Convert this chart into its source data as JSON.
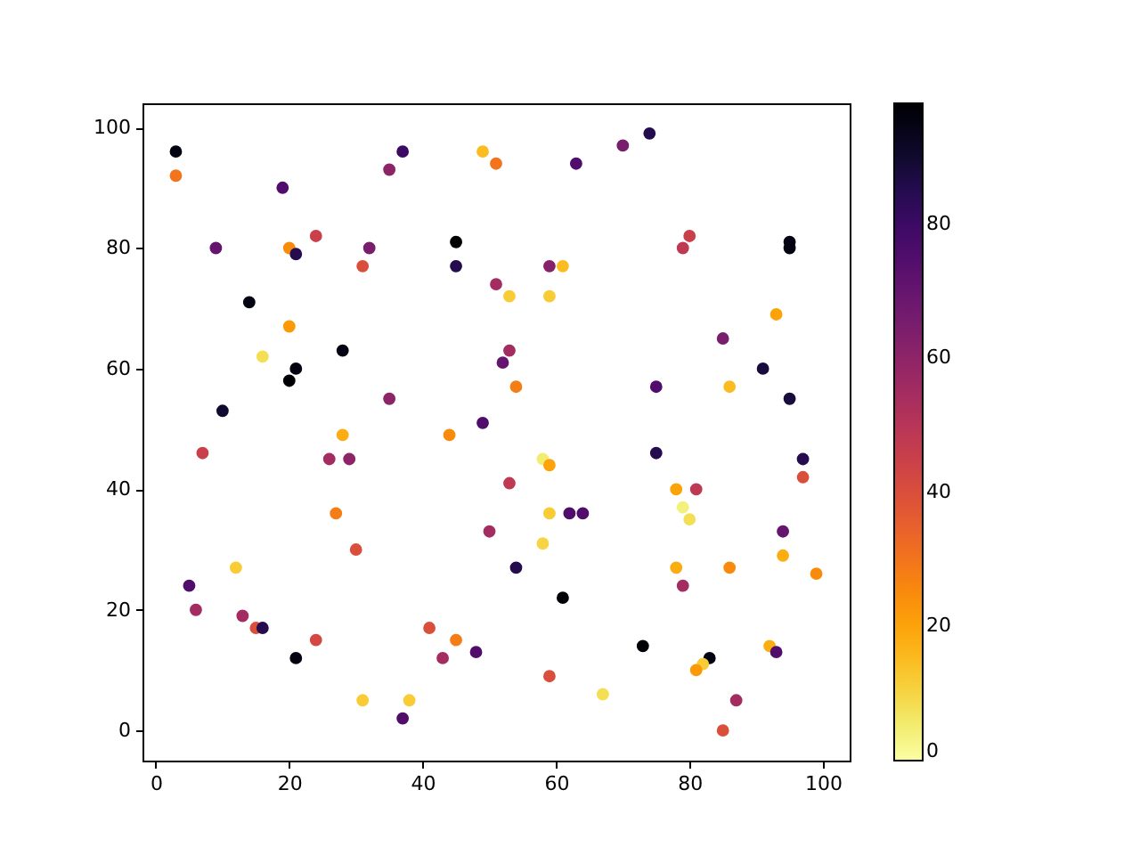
{
  "chart_data": {
    "type": "scatter",
    "marker": "circle",
    "x": [
      3,
      3,
      19,
      9,
      20,
      21,
      24,
      32,
      31,
      37,
      35,
      49,
      51,
      45,
      45,
      51,
      14,
      20,
      16,
      21,
      20,
      28,
      10,
      35,
      52,
      53,
      49,
      44,
      28,
      63,
      70,
      74,
      80,
      79,
      95,
      95,
      59,
      61,
      53,
      59,
      93,
      85,
      91,
      95,
      75,
      86,
      54,
      7,
      26,
      29,
      27,
      30,
      50,
      12,
      5,
      6,
      13,
      15,
      16,
      21,
      24,
      31,
      38,
      37,
      41,
      45,
      43,
      48,
      75,
      58,
      59,
      53,
      59,
      62,
      64,
      58,
      54,
      61,
      78,
      81,
      79,
      80,
      97,
      97,
      94,
      94,
      99,
      78,
      86,
      79,
      73,
      92,
      93,
      83,
      82,
      81,
      59,
      67,
      87,
      85
    ],
    "values": [
      96,
      92,
      90,
      80,
      80,
      79,
      82,
      80,
      77,
      96,
      93,
      96,
      94,
      81,
      77,
      74,
      71,
      67,
      62,
      60,
      58,
      63,
      53,
      55,
      61,
      63,
      51,
      49,
      49,
      94,
      97,
      99,
      82,
      80,
      81,
      80,
      77,
      77,
      72,
      72,
      69,
      65,
      60,
      55,
      57,
      57,
      57,
      46,
      45,
      45,
      36,
      30,
      33,
      27,
      24,
      20,
      19,
      17,
      17,
      12,
      15,
      5,
      5,
      2,
      17,
      15,
      12,
      13,
      46,
      45,
      44,
      41,
      36,
      36,
      36,
      31,
      27,
      22,
      40,
      40,
      37,
      35,
      45,
      42,
      33,
      29,
      26,
      27,
      27,
      24,
      14,
      14,
      13,
      12,
      11,
      10,
      9,
      6,
      5,
      0
    ],
    "cvalues": [
      95,
      30,
      75,
      70,
      25,
      85,
      45,
      65,
      40,
      80,
      60,
      15,
      30,
      98,
      85,
      55,
      95,
      22,
      8,
      95,
      98,
      95,
      90,
      60,
      70,
      55,
      75,
      25,
      18,
      75,
      65,
      85,
      45,
      48,
      95,
      95,
      62,
      15,
      12,
      12,
      20,
      65,
      88,
      88,
      75,
      15,
      28,
      45,
      55,
      60,
      28,
      40,
      55,
      12,
      75,
      55,
      55,
      40,
      85,
      95,
      42,
      12,
      12,
      75,
      40,
      28,
      55,
      75,
      85,
      5,
      20,
      48,
      12,
      75,
      75,
      10,
      85,
      98,
      20,
      48,
      4,
      8,
      85,
      40,
      70,
      18,
      25,
      18,
      25,
      55,
      98,
      18,
      75,
      95,
      12,
      22,
      40,
      8,
      55,
      40
    ],
    "xlim": [
      -2,
      104
    ],
    "ylim": [
      -5,
      104
    ],
    "xticks": [
      0,
      20,
      40,
      60,
      80,
      100
    ],
    "yticks": [
      0,
      20,
      40,
      60,
      80,
      100
    ],
    "clim": [
      0,
      98
    ],
    "cticks": [
      0,
      20,
      40,
      60,
      80
    ]
  }
}
